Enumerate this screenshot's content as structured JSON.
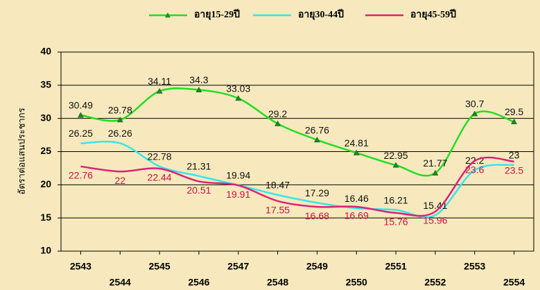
{
  "chart_data": {
    "type": "line",
    "y_label": "อัตราต่อแสนประชากร",
    "categories": [
      "2543",
      "2544",
      "2545",
      "2546",
      "2547",
      "2548",
      "2549",
      "2550",
      "2551",
      "2552",
      "2553",
      "2554"
    ],
    "series": [
      {
        "name": "อายุ15-29ปี",
        "color": "#22dd22",
        "marker": "triangle",
        "label_color": "#111111",
        "label_position": "above",
        "values": [
          30.49,
          29.78,
          34.11,
          34.3,
          33.03,
          29.2,
          26.76,
          24.81,
          22.95,
          21.77,
          30.7,
          29.5
        ]
      },
      {
        "name": "อายุ30-44ปี",
        "color": "#33e6ee",
        "label_color": "#111111",
        "label_position": "above",
        "values": [
          26.25,
          26.26,
          22.78,
          21.31,
          19.94,
          18.47,
          17.29,
          16.46,
          16.21,
          15.41,
          22.2,
          23
        ]
      },
      {
        "name": "อายุ45-59ปี",
        "color": "#dd2277",
        "label_color": "#cc1144",
        "label_position": "below",
        "values": [
          22.76,
          22,
          22.44,
          20.51,
          19.91,
          17.55,
          16.68,
          16.69,
          15.76,
          15.96,
          23.6,
          23.5
        ]
      }
    ],
    "ylim": [
      10,
      40
    ],
    "yticks": [
      10,
      15,
      20,
      25,
      30,
      35,
      40
    ],
    "grid": true,
    "legend": "top"
  }
}
